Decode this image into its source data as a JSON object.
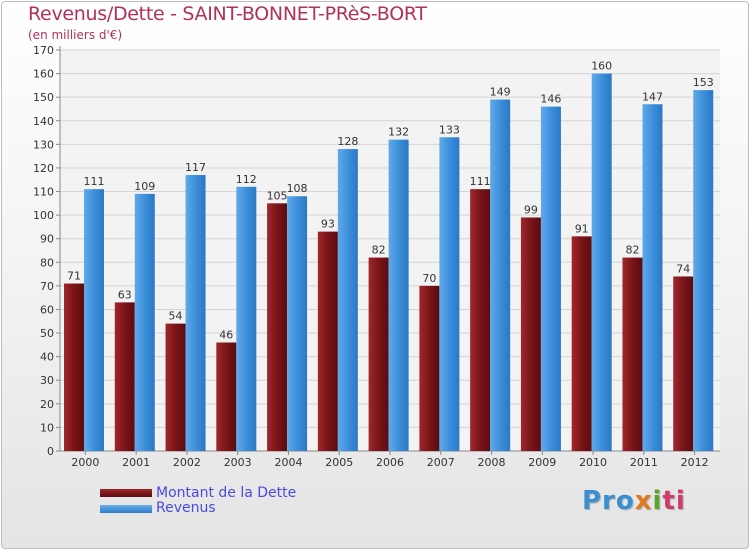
{
  "title": "Revenus/Dette - SAINT-BONNET-PRèS-BORT",
  "subtitle": "(en milliers d'€)",
  "chart_data": {
    "type": "bar",
    "categories": [
      "2000",
      "2001",
      "2002",
      "2003",
      "2004",
      "2005",
      "2006",
      "2007",
      "2008",
      "2009",
      "2010",
      "2011",
      "2012"
    ],
    "series": [
      {
        "name": "Montant de la Dette",
        "color": "#7a1418",
        "values": [
          71,
          63,
          54,
          46,
          105,
          93,
          82,
          70,
          111,
          99,
          91,
          82,
          74
        ]
      },
      {
        "name": "Revenus",
        "color": "#3d8fdc",
        "values": [
          111,
          109,
          117,
          112,
          108,
          128,
          132,
          133,
          149,
          146,
          160,
          147,
          153
        ]
      }
    ],
    "ylim": [
      0,
      170
    ],
    "yticks": [
      0,
      10,
      20,
      30,
      40,
      50,
      60,
      70,
      80,
      90,
      100,
      110,
      120,
      130,
      140,
      150,
      160,
      170
    ],
    "grid": true,
    "legend_position": "bottom-left"
  },
  "legend": {
    "debt_label": "Montant de la Dette",
    "revenue_label": "Revenus"
  },
  "logo": {
    "part1": "Pro",
    "part2": "x",
    "part3": "i",
    "part4": "ti"
  }
}
